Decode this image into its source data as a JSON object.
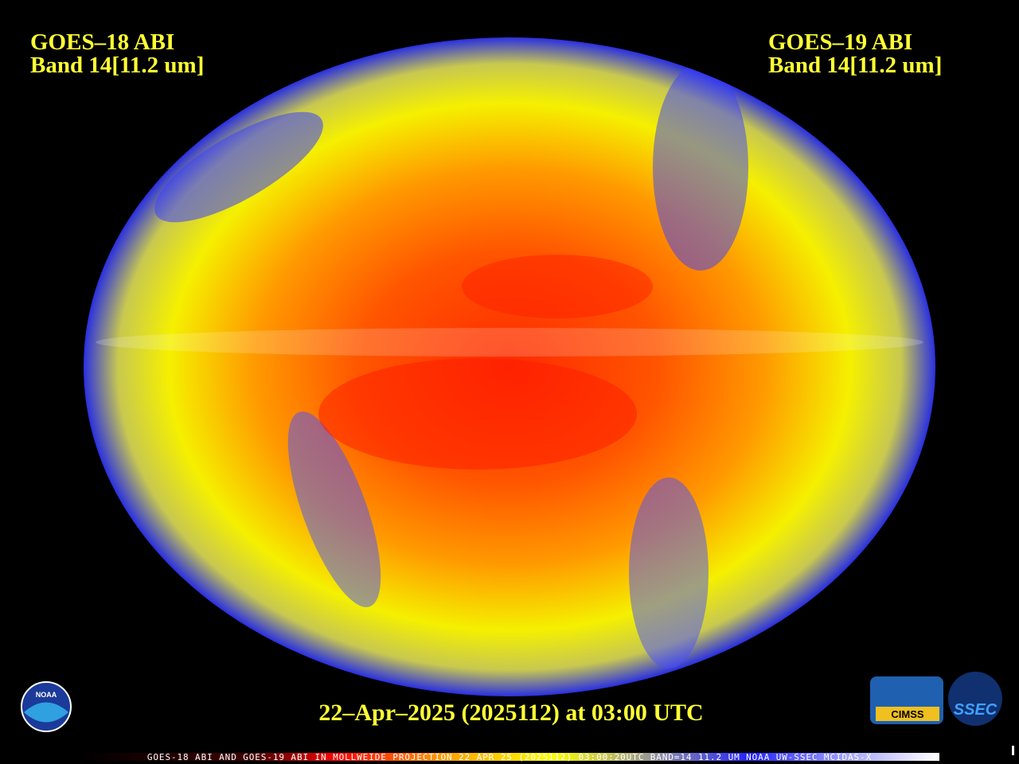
{
  "header": {
    "left": {
      "line1": "GOES–18 ABI",
      "line2": "Band 14[11.2 um]"
    },
    "right": {
      "line1": "GOES–19 ABI",
      "line2": "Band 14[11.2 um]"
    }
  },
  "timestamp": "22–Apr–2025 (2025112) at 03:00 UTC",
  "footer": "GOES-18 ABI AND GOES-19 ABI IN MOLLWEIDE PROJECTION 22 APR 25 (2025112) 03:00:20UTC BAND=14 11.2 UM NOAA UW-SSEC MCIDAS-X",
  "logos": {
    "noaa": "NOAA",
    "cimss": "CIMSS",
    "ssec": "SSEC"
  }
}
